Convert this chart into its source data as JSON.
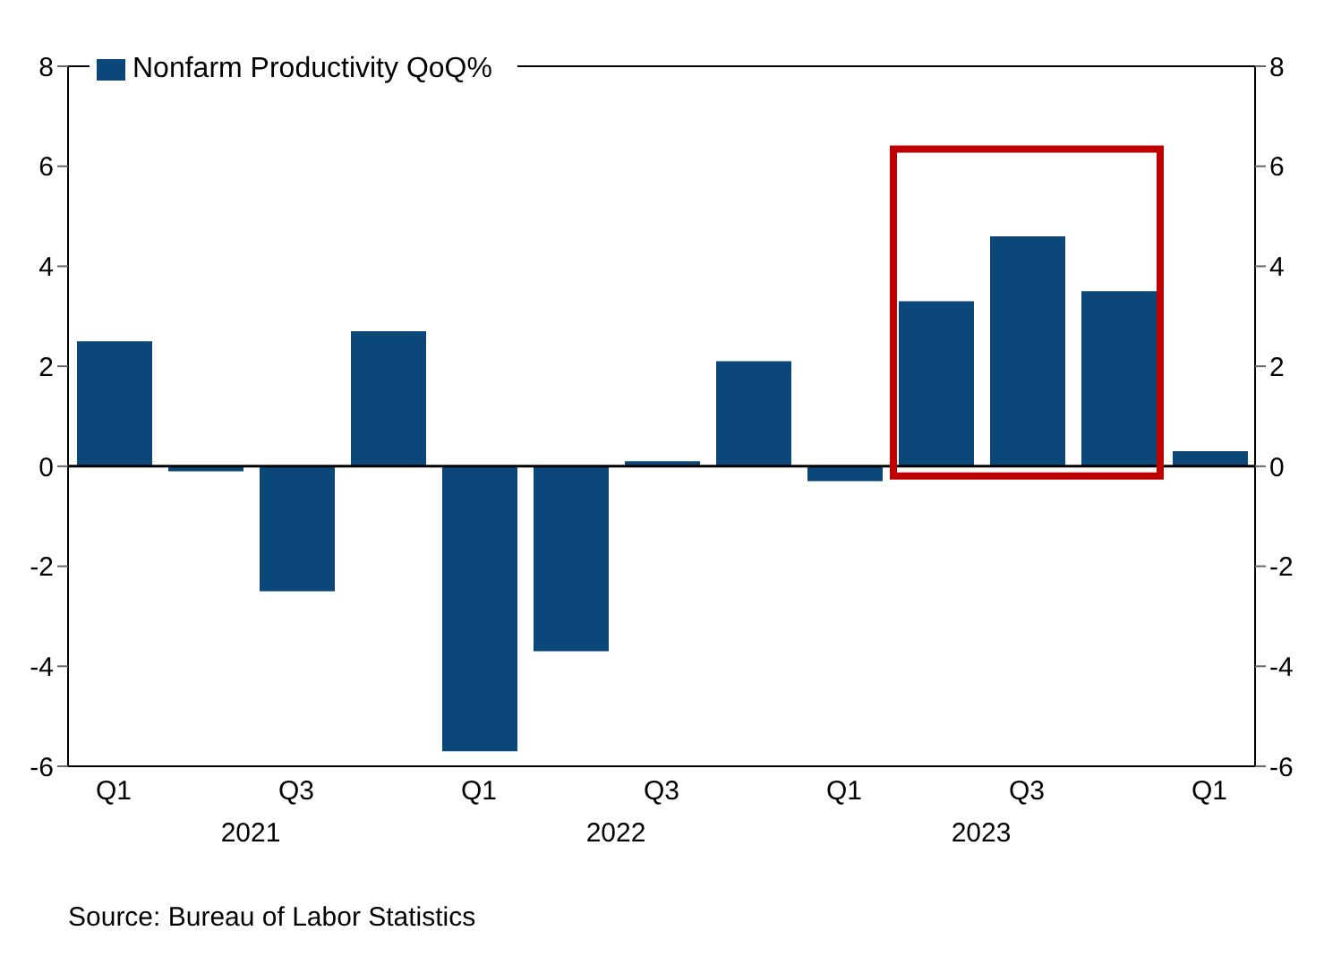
{
  "chart_data": {
    "type": "bar",
    "categories": [
      "Q1",
      null,
      "Q3",
      null,
      "Q1",
      null,
      "Q3",
      null,
      "Q1",
      null,
      "Q3",
      null,
      "Q1"
    ],
    "series": [
      {
        "name": "Nonfarm Productivity QoQ%",
        "color": "#0b4778",
        "values": [
          2.5,
          -0.1,
          -2.5,
          2.7,
          -5.7,
          -3.7,
          0.1,
          2.1,
          -0.3,
          3.3,
          4.6,
          3.5,
          0.3
        ]
      }
    ],
    "ylim": [
      -6,
      8
    ],
    "yticks": [
      -6,
      -4,
      -2,
      0,
      2,
      4,
      6,
      8
    ],
    "y2lim": [
      -6,
      8
    ],
    "y2ticks": [
      -6,
      -4,
      -2,
      0,
      2,
      4,
      6,
      8
    ],
    "ref_lines": [
      {
        "axis": "y",
        "value": 0,
        "color": "#000000"
      }
    ],
    "annotations": [
      "2021",
      "2022",
      "2023",
      "Source:  Bureau of Labor Statistics"
    ],
    "legend": "top left",
    "grid": false
  }
}
